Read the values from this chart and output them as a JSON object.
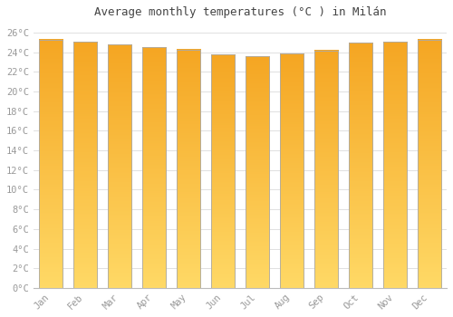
{
  "title": "Average monthly temperatures (°C ) in Milán",
  "months": [
    "Jan",
    "Feb",
    "Mar",
    "Apr",
    "May",
    "Jun",
    "Jul",
    "Aug",
    "Sep",
    "Oct",
    "Nov",
    "Dec"
  ],
  "values": [
    25.3,
    25.1,
    24.8,
    24.5,
    24.3,
    23.8,
    23.6,
    23.9,
    24.2,
    25.0,
    25.1,
    25.3
  ],
  "bar_color": "#F5A623",
  "bar_edge_color": "#AAAAAA",
  "background_color": "#FFFFFF",
  "grid_color": "#E0E0E0",
  "text_color": "#999999",
  "ylim": [
    0,
    27
  ],
  "yticks": [
    0,
    2,
    4,
    6,
    8,
    10,
    12,
    14,
    16,
    18,
    20,
    22,
    24,
    26
  ],
  "title_fontsize": 9,
  "tick_fontsize": 7.5
}
